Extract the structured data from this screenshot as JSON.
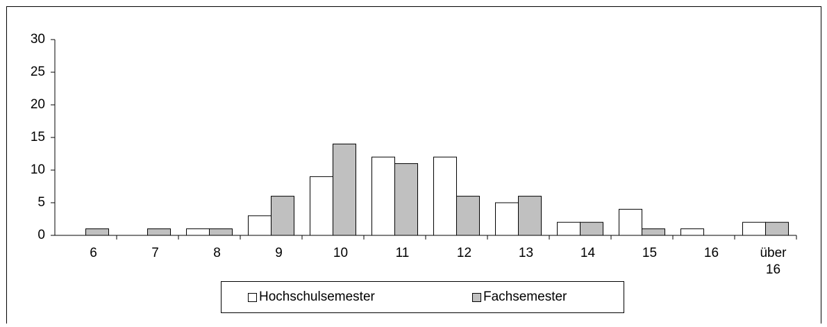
{
  "chart_data": {
    "type": "bar",
    "categories": [
      "6",
      "7",
      "8",
      "9",
      "10",
      "11",
      "12",
      "13",
      "14",
      "15",
      "16",
      "über 16"
    ],
    "series": [
      {
        "name": "Hochschulsemester",
        "color": "#ffffff",
        "values": [
          0,
          0,
          1,
          3,
          9,
          12,
          12,
          5,
          2,
          4,
          1,
          2
        ]
      },
      {
        "name": "Fachsemester",
        "color": "#c0c0c0",
        "values": [
          1,
          1,
          1,
          6,
          14,
          11,
          6,
          6,
          2,
          1,
          0,
          2
        ]
      }
    ],
    "ylim": [
      0,
      30
    ],
    "yticks": [
      0,
      5,
      10,
      15,
      20,
      25,
      30
    ],
    "grid": false,
    "legend": "bottom"
  }
}
